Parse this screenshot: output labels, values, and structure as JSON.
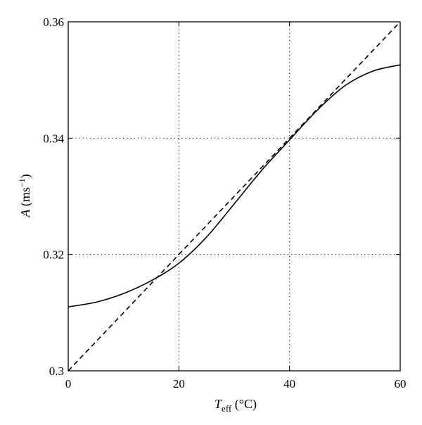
{
  "chart_data": {
    "type": "line",
    "title": "",
    "xlabel": {
      "symbol": "T",
      "subscript": "eff",
      "unit": "(°C)"
    },
    "ylabel": {
      "symbol": "A",
      "unit": "(ms",
      "exponent": "−1",
      "close": ")"
    },
    "xlim": [
      0,
      60
    ],
    "ylim": [
      0.3,
      0.36
    ],
    "xticks": [
      0,
      20,
      40,
      60
    ],
    "xtick_labels": [
      "0",
      "20",
      "40",
      "60"
    ],
    "yticks": [
      0.3,
      0.32,
      0.34,
      0.36
    ],
    "ytick_labels": [
      "0.3",
      "0.32",
      "0.34",
      "0.36"
    ],
    "grid": true,
    "grid_style": "dotted",
    "legend": "none",
    "series": [
      {
        "style": "solid",
        "color": "#000000",
        "x": [
          0,
          5,
          10,
          15,
          20,
          25,
          30,
          35,
          40,
          45,
          50,
          55,
          60
        ],
        "y": [
          0.311,
          0.3118,
          0.3133,
          0.3155,
          0.3185,
          0.323,
          0.3287,
          0.3345,
          0.3397,
          0.3448,
          0.349,
          0.3515,
          0.3526
        ]
      },
      {
        "style": "dashed",
        "color": "#000000",
        "x": [
          0,
          60
        ],
        "y": [
          0.3,
          0.36
        ]
      }
    ]
  }
}
